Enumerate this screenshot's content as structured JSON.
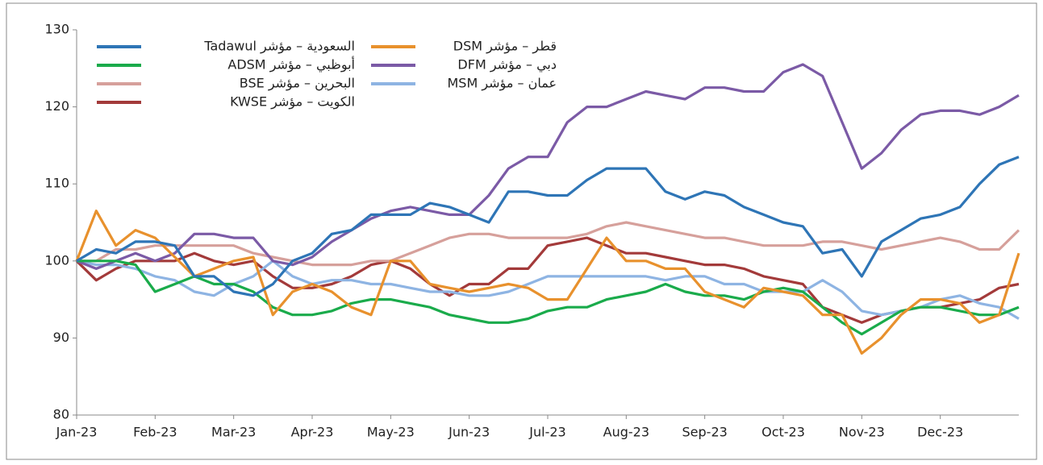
{
  "chart_data": {
    "type": "line",
    "xlim": [
      0,
      12
    ],
    "ylim": [
      80,
      130
    ],
    "yticks": [
      80,
      90,
      100,
      110,
      120,
      130
    ],
    "xticks": [
      {
        "value": 0,
        "label": "Jan-23"
      },
      {
        "value": 1,
        "label": "Feb-23"
      },
      {
        "value": 2,
        "label": "Mar-23"
      },
      {
        "value": 3,
        "label": "Apr-23"
      },
      {
        "value": 4,
        "label": "May-23"
      },
      {
        "value": 5,
        "label": "Jun-23"
      },
      {
        "value": 6,
        "label": "Jul-23"
      },
      {
        "value": 7,
        "label": "Aug-23"
      },
      {
        "value": 8,
        "label": "Sep-23"
      },
      {
        "value": 9,
        "label": "Oct-23"
      },
      {
        "value": 10,
        "label": "Nov-23"
      },
      {
        "value": 11,
        "label": "Dec-23"
      }
    ],
    "x": [
      0,
      0.25,
      0.5,
      0.75,
      1,
      1.25,
      1.5,
      1.75,
      2,
      2.25,
      2.5,
      2.75,
      3,
      3.25,
      3.5,
      3.75,
      4,
      4.25,
      4.5,
      4.75,
      5,
      5.25,
      5.5,
      5.75,
      6,
      6.25,
      6.5,
      6.75,
      7,
      7.25,
      7.5,
      7.75,
      8,
      8.25,
      8.5,
      8.75,
      9,
      9.25,
      9.5,
      9.75,
      10,
      10.25,
      10.5,
      10.75,
      11,
      11.25,
      11.5,
      11.75,
      12
    ],
    "series": [
      {
        "name": "السعودية – مؤشر Tadawul",
        "color": "#2e75b6",
        "values": [
          100,
          101.5,
          101,
          102.5,
          102.5,
          102,
          98,
          98,
          96,
          95.5,
          97,
          100,
          101,
          103.5,
          104,
          106,
          106,
          106,
          107.5,
          107,
          106,
          105,
          109,
          109,
          108.5,
          108.5,
          110.5,
          112,
          112,
          112,
          109,
          108,
          109,
          108.5,
          107,
          106,
          105,
          104.5,
          101,
          101.5,
          98,
          102.5,
          104,
          105.5,
          106,
          107,
          110,
          112.5,
          113.5
        ]
      },
      {
        "name": "قطر – مؤشر DSM",
        "color": "#e8912d",
        "values": [
          100,
          106.5,
          102,
          104,
          103,
          100.5,
          98,
          99,
          100,
          100.5,
          93,
          96,
          97,
          96,
          94,
          93,
          100,
          100,
          97,
          96.5,
          96,
          96.5,
          97,
          96.5,
          95,
          95,
          99,
          103,
          100,
          100,
          99,
          99,
          96,
          95,
          94,
          96.5,
          96,
          95.5,
          93,
          93,
          88,
          90,
          93,
          95,
          95,
          94.5,
          92,
          93,
          101
        ]
      },
      {
        "name": "أبوظبي – مؤشر ADSM",
        "color": "#1aab4b",
        "values": [
          100,
          100,
          100,
          99.5,
          96,
          97,
          98,
          97,
          97,
          96,
          94,
          93,
          93,
          93.5,
          94.5,
          95,
          95,
          94.5,
          94,
          93,
          92.5,
          92,
          92,
          92.5,
          93.5,
          94,
          94,
          95,
          95.5,
          96,
          97,
          96,
          95.5,
          95.5,
          95,
          96,
          96.5,
          96,
          94,
          92,
          90.5,
          92,
          93.5,
          94,
          94,
          93.5,
          93,
          93,
          94
        ]
      },
      {
        "name": "دبي – مؤشر DFM",
        "color": "#7b5aa6",
        "values": [
          100,
          99,
          100,
          101,
          100,
          101,
          103.5,
          103.5,
          103,
          103,
          100,
          99.5,
          100.5,
          102.5,
          104,
          105.5,
          106.5,
          107,
          106.5,
          106,
          106,
          108.5,
          112,
          113.5,
          113.5,
          118,
          120,
          120,
          121,
          122,
          121.5,
          121,
          122.5,
          122.5,
          122,
          122,
          124.5,
          125.5,
          124,
          118,
          112,
          114,
          117,
          119,
          119.5,
          119.5,
          119,
          120,
          121.5
        ]
      },
      {
        "name": "البحرين – مؤشر BSE",
        "color": "#d6a09b",
        "values": [
          100,
          100,
          101.5,
          101.5,
          102,
          102,
          102,
          102,
          102,
          101,
          100.5,
          100,
          99.5,
          99.5,
          99.5,
          100,
          100,
          101,
          102,
          103,
          103.5,
          103.5,
          103,
          103,
          103,
          103,
          103.5,
          104.5,
          105,
          104.5,
          104,
          103.5,
          103,
          103,
          102.5,
          102,
          102,
          102,
          102.5,
          102.5,
          102,
          101.5,
          102,
          102.5,
          103,
          102.5,
          101.5,
          101.5,
          104
        ]
      },
      {
        "name": "عمان – مؤشر MSM",
        "color": "#8eb4e3",
        "values": [
          100,
          99.5,
          99.5,
          99,
          98,
          97.5,
          96,
          95.5,
          97,
          98,
          100,
          98,
          97,
          97.5,
          97.5,
          97,
          97,
          96.5,
          96,
          96,
          95.5,
          95.5,
          96,
          97,
          98,
          98,
          98,
          98,
          98,
          98,
          97.5,
          98,
          98,
          97,
          97,
          96,
          96,
          96,
          97.5,
          96,
          93.5,
          93,
          93.5,
          94,
          95,
          95.5,
          94.5,
          94,
          92.5
        ]
      },
      {
        "name": "الكويت – مؤشر KWSE",
        "color": "#a33a3a",
        "values": [
          100,
          97.5,
          99,
          100,
          100,
          100,
          101,
          100,
          99.5,
          100,
          98,
          96.5,
          96.5,
          97,
          98,
          99.5,
          100,
          99,
          97,
          95.5,
          97,
          97,
          99,
          99,
          102,
          102.5,
          103,
          102,
          101,
          101,
          100.5,
          100,
          99.5,
          99.5,
          99,
          98,
          97.5,
          97,
          94,
          93,
          92,
          93,
          93.5,
          94,
          94,
          94.5,
          95,
          96.5,
          97
        ]
      }
    ]
  }
}
